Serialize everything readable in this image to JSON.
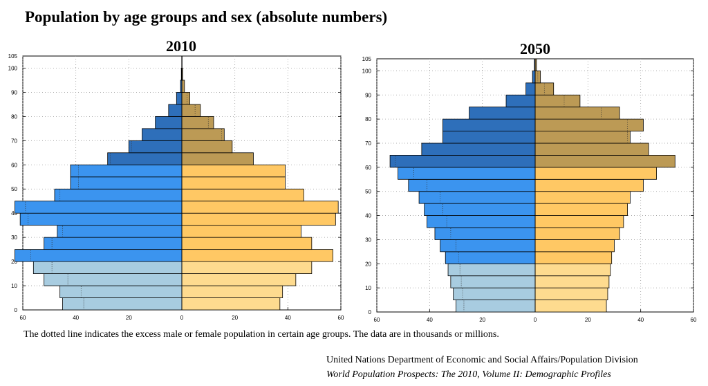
{
  "title": "Population by age groups and sex (absolute numbers)",
  "note": "The dotted line indicates the excess male or female population in certain age groups. The data are in thousands or millions.",
  "source": {
    "line1": "United Nations Department of Economic and Social Affairs/Population Division",
    "line2": "World Population Prospects: The 2010, Volume II: Demographic Profiles"
  },
  "colors": {
    "male_young": "#a8cce0",
    "male_adult": "#3b94ef",
    "male_old": "#2e6fba",
    "female_young": "#fedb8f",
    "female_adult": "#ffc864",
    "female_old": "#bc9a55"
  },
  "chart_data": [
    {
      "type": "bar",
      "orientation": "horizontal-pyramid",
      "title": "2010",
      "age_groups": [
        "0-4",
        "5-9",
        "10-14",
        "15-19",
        "20-24",
        "25-29",
        "30-34",
        "35-39",
        "40-44",
        "45-49",
        "50-54",
        "55-59",
        "60-64",
        "65-69",
        "70-74",
        "75-79",
        "80-84",
        "85-89",
        "90-94",
        "95-99",
        "100+"
      ],
      "series": [
        {
          "values": [
            45,
            46,
            52,
            56,
            63,
            52,
            47,
            61,
            63,
            48,
            42,
            42,
            28,
            20,
            15,
            10,
            5,
            2,
            0.5,
            0.2,
            0.05
          ]
        },
        {
          "values": [
            37,
            38,
            43,
            49,
            57,
            49,
            45,
            58,
            59,
            46,
            39,
            39,
            27,
            19,
            16,
            12,
            7,
            3,
            1,
            0.3,
            0.1
          ]
        }
      ],
      "xlim": [
        -60,
        60
      ],
      "xticks": [
        "60",
        "40",
        "20",
        "0",
        "20",
        "40",
        "60"
      ],
      "ylim": [
        0,
        105
      ],
      "yticks": [
        "0",
        "10",
        "20",
        "30",
        "40",
        "50",
        "60",
        "70",
        "80",
        "90",
        "100",
        "105"
      ],
      "grid": true
    },
    {
      "type": "bar",
      "orientation": "horizontal-pyramid",
      "title": "2050",
      "age_groups": [
        "0-4",
        "5-9",
        "10-14",
        "15-19",
        "20-24",
        "25-29",
        "30-34",
        "35-39",
        "40-44",
        "45-49",
        "50-54",
        "55-59",
        "60-64",
        "65-69",
        "70-74",
        "75-79",
        "80-84",
        "85-89",
        "90-94",
        "95-99",
        "100+"
      ],
      "series": [
        {
          "values": [
            30,
            31,
            32,
            33,
            34,
            36,
            38,
            41,
            42,
            44,
            48,
            52,
            55,
            43,
            35,
            35,
            25,
            11,
            3.5,
            1,
            0.3
          ]
        },
        {
          "values": [
            27,
            27.5,
            28,
            28.5,
            29,
            30,
            32,
            33.5,
            35,
            36,
            41,
            46,
            53,
            43,
            36,
            41,
            32,
            17,
            7,
            2,
            0.5
          ]
        }
      ],
      "xlim": [
        -60,
        60
      ],
      "xticks": [
        "60",
        "40",
        "20",
        "0",
        "20",
        "40",
        "60"
      ],
      "ylim": [
        0,
        105
      ],
      "yticks": [
        "0",
        "10",
        "20",
        "30",
        "40",
        "50",
        "60",
        "70",
        "80",
        "90",
        "100",
        "105"
      ],
      "grid": true
    }
  ]
}
